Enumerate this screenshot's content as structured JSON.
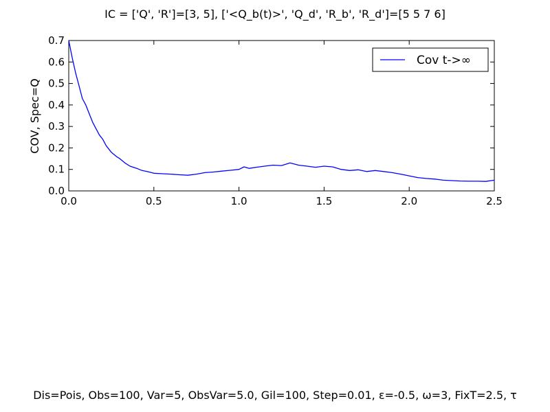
{
  "title": "IC = ['Q', 'R']=[3, 5], ['<Q_b(t)>', 'Q_d', 'R_b', 'R_d']=[5 5 7 6]",
  "footer": "Dis=Pois, Obs=100, Var=5, ObsVar=5.0, Gil=100, Step=0.01, ε=-0.5, ω=3, FixT=2.5, τ",
  "colors": {
    "line": "#0000ff",
    "axis": "#000000",
    "background": "#ffffff"
  },
  "chart_data": {
    "type": "line",
    "title": "IC = ['Q', 'R']=[3, 5], ['<Q_b(t)>', 'Q_d', 'R_b', 'R_d']=[5 5 7 6]",
    "xlabel": "",
    "ylabel": "COV, Spec=Q",
    "xlim": [
      0.0,
      2.5
    ],
    "ylim": [
      0.0,
      0.7
    ],
    "xticks": [
      "0.0",
      "0.5",
      "1.0",
      "1.5",
      "2.0",
      "2.5"
    ],
    "yticks": [
      "0.0",
      "0.1",
      "0.2",
      "0.3",
      "0.4",
      "0.5",
      "0.6",
      "0.7"
    ],
    "grid": false,
    "legend_position": "top-right",
    "series": [
      {
        "name": "Cov t->∞",
        "color": "#0000ff",
        "x": [
          0.0,
          0.02,
          0.04,
          0.06,
          0.08,
          0.1,
          0.12,
          0.14,
          0.16,
          0.18,
          0.2,
          0.22,
          0.25,
          0.28,
          0.3,
          0.33,
          0.36,
          0.4,
          0.43,
          0.46,
          0.5,
          0.55,
          0.6,
          0.65,
          0.7,
          0.75,
          0.8,
          0.85,
          0.9,
          0.95,
          1.0,
          1.03,
          1.06,
          1.1,
          1.15,
          1.2,
          1.25,
          1.3,
          1.35,
          1.4,
          1.45,
          1.5,
          1.55,
          1.6,
          1.65,
          1.7,
          1.75,
          1.8,
          1.85,
          1.9,
          1.95,
          2.0,
          2.05,
          2.1,
          2.15,
          2.2,
          2.25,
          2.3,
          2.35,
          2.4,
          2.45,
          2.5
        ],
        "y": [
          0.7,
          0.62,
          0.55,
          0.49,
          0.43,
          0.4,
          0.36,
          0.32,
          0.29,
          0.26,
          0.24,
          0.21,
          0.18,
          0.16,
          0.15,
          0.13,
          0.115,
          0.105,
          0.095,
          0.09,
          0.082,
          0.08,
          0.078,
          0.075,
          0.073,
          0.078,
          0.085,
          0.088,
          0.092,
          0.096,
          0.1,
          0.112,
          0.105,
          0.11,
          0.115,
          0.12,
          0.118,
          0.13,
          0.12,
          0.115,
          0.11,
          0.115,
          0.112,
          0.1,
          0.095,
          0.098,
          0.09,
          0.095,
          0.09,
          0.085,
          0.078,
          0.07,
          0.062,
          0.058,
          0.055,
          0.05,
          0.048,
          0.046,
          0.045,
          0.045,
          0.044,
          0.05
        ]
      }
    ]
  }
}
